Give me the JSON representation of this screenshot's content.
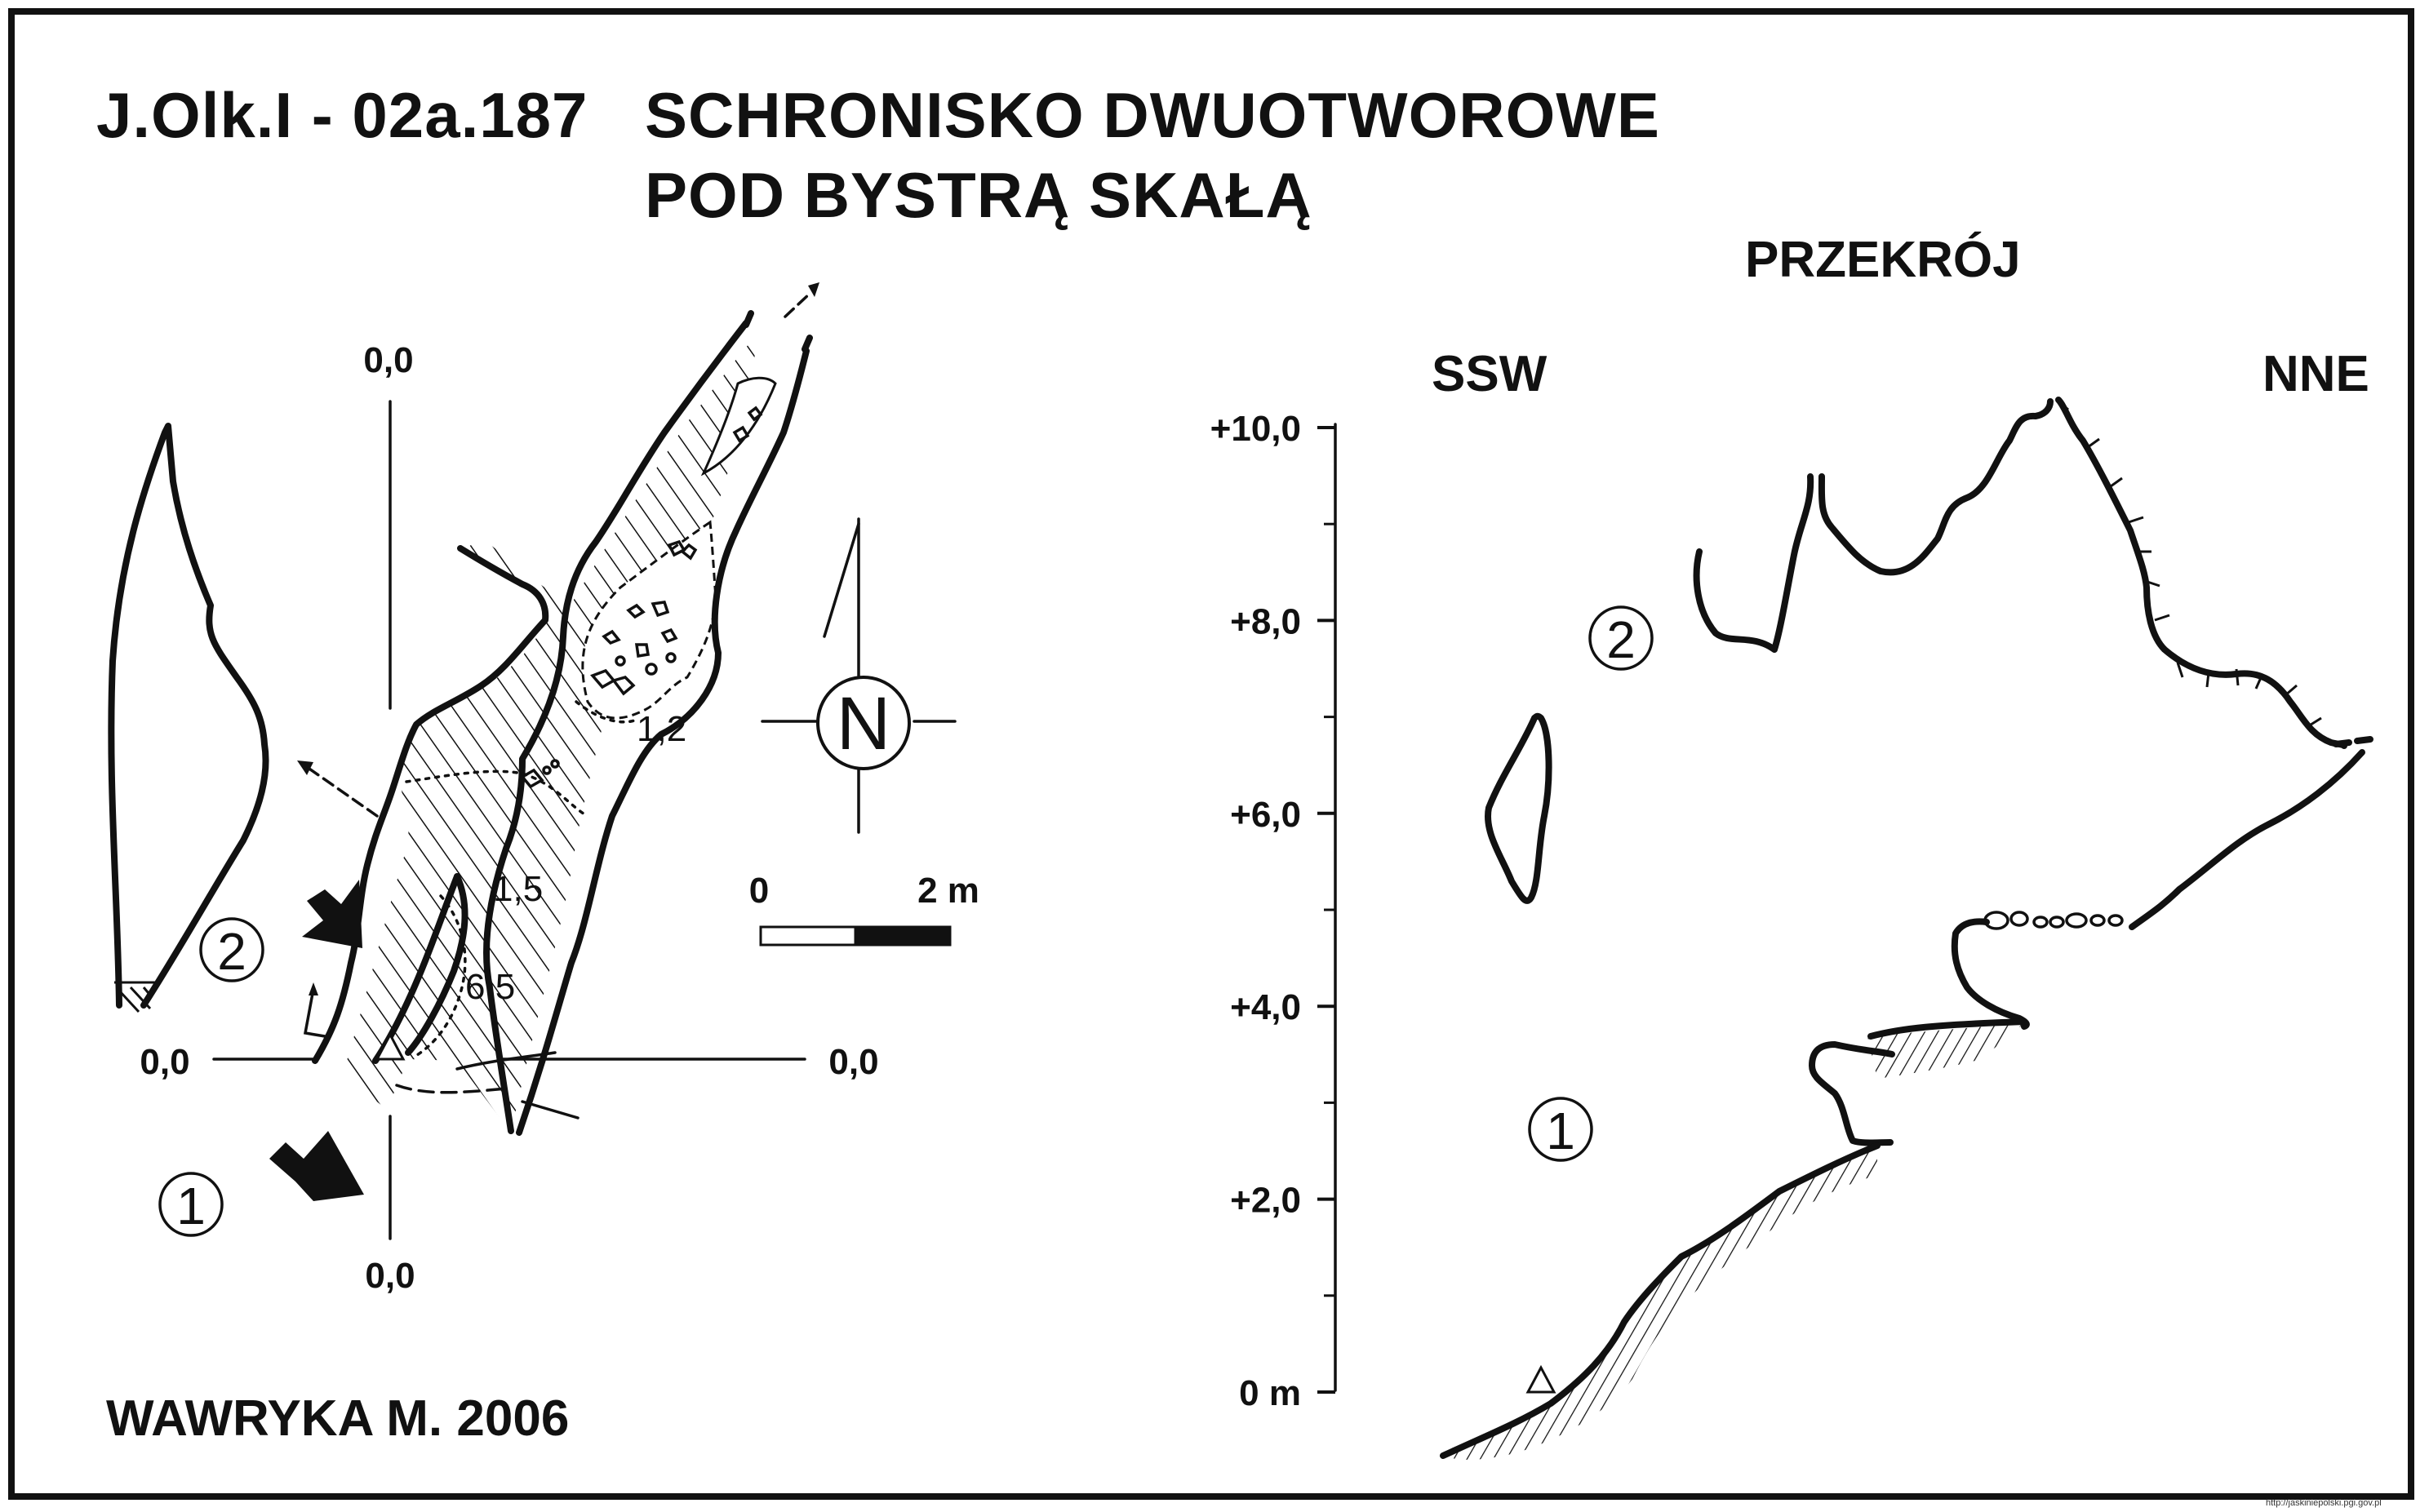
{
  "title": {
    "code": "J.Olk.I - 02a.187",
    "line1": "SCHRONISKO DWUOTWOROWE",
    "line2": "POD BYSTRĄ SKAŁĄ"
  },
  "plan": {
    "axis_labels": {
      "top": "0,0",
      "bottom": "0,0",
      "left": "0,0",
      "right": "0,0"
    },
    "depth_marks": [
      "1,2",
      "1,5",
      "6,5"
    ],
    "entrances": [
      "2",
      "1"
    ],
    "compass_label": "N",
    "scale": {
      "start": "0",
      "end": "2 m"
    }
  },
  "section": {
    "title": "PRZEKRÓJ",
    "left_direction": "SSW",
    "right_direction": "NNE",
    "axis_ticks": [
      "+10,0",
      "+8,0",
      "+6,0",
      "+4,0",
      "+2,0",
      "0 m"
    ],
    "entrances": [
      "2",
      "1"
    ]
  },
  "author": "WAWRYKA M. 2006",
  "credit": "http://jaskiniepolski.pgi.gov.pl"
}
